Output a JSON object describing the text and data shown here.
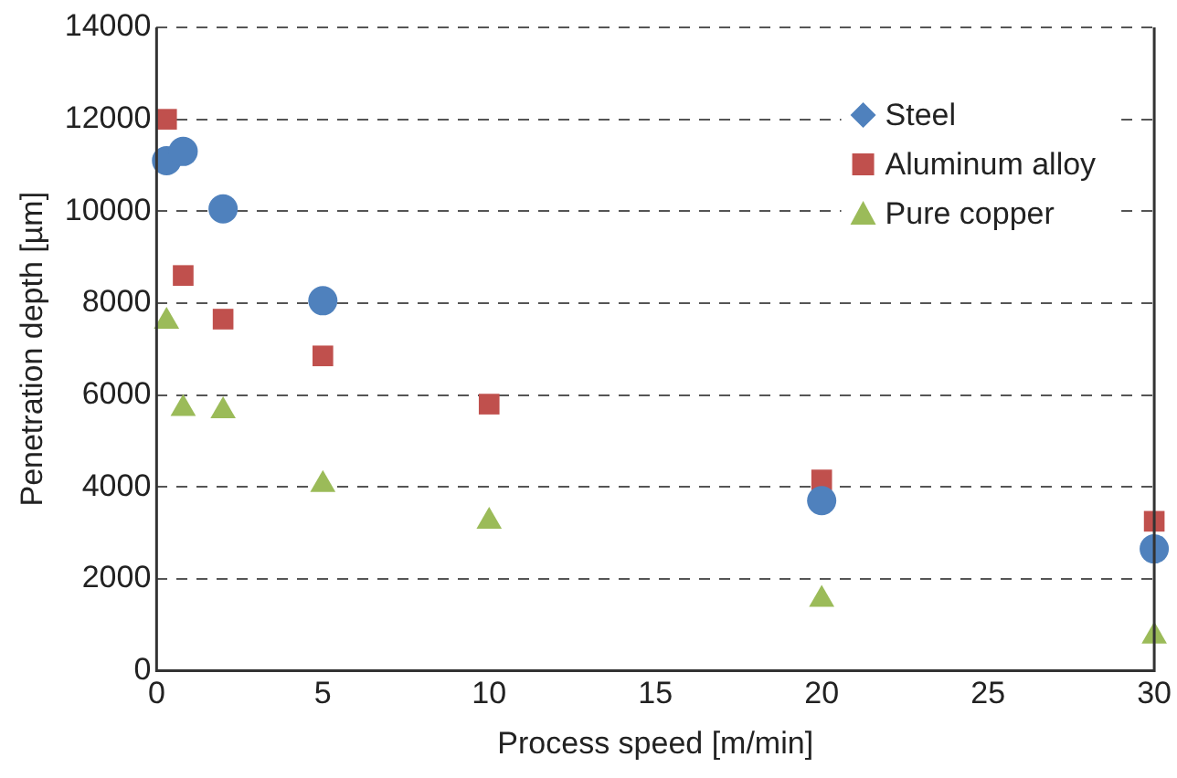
{
  "chart_data": {
    "type": "scatter",
    "xlabel": "Process speed [m/min]",
    "ylabel": "Penetration depth [µm]",
    "xlim": [
      0,
      30
    ],
    "xticks": [
      0,
      5,
      10,
      15,
      20,
      25,
      30
    ],
    "ylim": [
      0,
      14000
    ],
    "yticks": [
      0,
      2000,
      4000,
      6000,
      8000,
      10000,
      12000,
      14000
    ],
    "grid": "y",
    "legend": "top right",
    "series": [
      {
        "name": "Steel",
        "color": "#4f81bd",
        "marker": "circle",
        "x": [
          0.3,
          0.8,
          2,
          5,
          20,
          30
        ],
        "values": [
          11100,
          11300,
          10050,
          8050,
          3700,
          2650
        ]
      },
      {
        "name": "Aluminum alloy",
        "color": "#c0504d",
        "marker": "square",
        "x": [
          0.3,
          0.8,
          2,
          5,
          10,
          20,
          30
        ],
        "values": [
          12000,
          8600,
          7650,
          6850,
          5800,
          4150,
          3250
        ]
      },
      {
        "name": "Pure copper",
        "color": "#9bbb59",
        "marker": "triangle",
        "x": [
          0.3,
          0.8,
          2,
          5,
          10,
          20,
          30
        ],
        "values": [
          7600,
          5700,
          5650,
          4050,
          3250,
          1550,
          750
        ]
      }
    ]
  }
}
